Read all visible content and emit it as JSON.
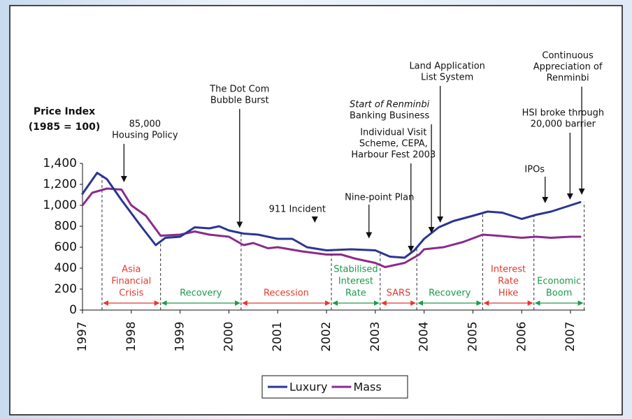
{
  "chart_data": {
    "type": "line",
    "y_label": [
      "Price Index",
      "(1985 = 100)"
    ],
    "xlim": [
      1997,
      2007.3
    ],
    "xticks": [
      1997,
      1998,
      1999,
      2000,
      2001,
      2002,
      2003,
      2004,
      2005,
      2006,
      2007
    ],
    "ylim": [
      0,
      1400
    ],
    "yticks": [
      0,
      200,
      400,
      600,
      800,
      {
        "value": 1000,
        "label": "1,000"
      },
      {
        "value": 1200,
        "label": "1,200"
      },
      {
        "value": 1400,
        "label": "1,400"
      }
    ],
    "legend": "bottom",
    "series": [
      {
        "name": "Luxury",
        "color": "#2a3593",
        "x": [
          1997,
          1997.3,
          1997.5,
          1997.8,
          1998.2,
          1998.5,
          1998.7,
          1999,
          1999.3,
          1999.6,
          1999.8,
          2000,
          2000.3,
          2000.6,
          2001,
          2001.3,
          2001.6,
          2002,
          2002.5,
          2003,
          2003.3,
          2003.6,
          2003.8,
          2004,
          2004.3,
          2004.6,
          2005,
          2005.3,
          2005.6,
          2006,
          2006.3,
          2006.6,
          2007,
          2007.2
        ],
        "values": [
          1110,
          1310,
          1250,
          1050,
          800,
          620,
          690,
          700,
          790,
          780,
          800,
          760,
          730,
          720,
          680,
          680,
          600,
          570,
          580,
          570,
          510,
          500,
          570,
          680,
          790,
          850,
          900,
          940,
          930,
          870,
          910,
          940,
          1000,
          1030
        ]
      },
      {
        "name": "Mass",
        "color": "#8b2a8c",
        "x": [
          1997,
          1997.2,
          1997.5,
          1997.8,
          1998,
          1998.3,
          1998.6,
          1999,
          1999.3,
          1999.6,
          2000,
          2000.3,
          2000.5,
          2000.8,
          2001,
          2001.5,
          2002,
          2002.3,
          2002.6,
          2003,
          2003.2,
          2003.6,
          2003.9,
          2004,
          2004.4,
          2004.8,
          2005.2,
          2005.5,
          2006,
          2006.3,
          2006.6,
          2007,
          2007.2
        ],
        "values": [
          1000,
          1120,
          1160,
          1150,
          1000,
          900,
          710,
          720,
          750,
          720,
          700,
          620,
          640,
          590,
          600,
          560,
          530,
          530,
          490,
          450,
          410,
          450,
          530,
          580,
          600,
          650,
          720,
          710,
          690,
          700,
          690,
          700,
          700
        ]
      }
    ],
    "periods": [
      {
        "lines": [
          "Asia",
          "Financial",
          "Crisis"
        ],
        "start": 1997.4,
        "end": 1998.6,
        "color": "#e23a2e"
      },
      {
        "lines": [
          "Recovery"
        ],
        "start": 1998.6,
        "end": 2000.25,
        "color": "#1d9a4a"
      },
      {
        "lines": [
          "Recession"
        ],
        "start": 2000.25,
        "end": 2002.1,
        "color": "#e23a2e"
      },
      {
        "lines": [
          "Stabilised",
          "Interest",
          "Rate"
        ],
        "start": 2002.1,
        "end": 2003.1,
        "color": "#1d9a4a"
      },
      {
        "lines": [
          "SARS"
        ],
        "start": 2003.1,
        "end": 2003.85,
        "color": "#e23a2e"
      },
      {
        "lines": [
          "Recovery"
        ],
        "start": 2003.85,
        "end": 2005.2,
        "color": "#1d9a4a"
      },
      {
        "lines": [
          "Interest",
          "Rate",
          "Hike"
        ],
        "start": 2005.2,
        "end": 2006.25,
        "color": "#e23a2e"
      },
      {
        "lines": [
          "Economic",
          "Boom"
        ],
        "start": 2006.25,
        "end": 2007.28,
        "color": "#1d9a4a"
      }
    ],
    "annotations": [
      {
        "lines": [
          "85,000",
          "Housing Policy"
        ],
        "x": 1997.85,
        "y": 1227
      },
      {
        "lines": [
          "The Dot Com",
          "Bubble Burst"
        ],
        "x": 2000.22,
        "y": 790
      },
      {
        "lines": [
          "911 Incident"
        ],
        "x": 2001.76,
        "y": 840
      },
      {
        "lines": [
          "Nine-point Plan"
        ],
        "x": 2002.87,
        "y": 690
      },
      {
        "lines": [
          "Individual Visit",
          "Scheme, CEPA,",
          "Harbour Fest 2003"
        ],
        "x": 2003.73,
        "y": 560
      },
      {
        "lines": [
          "Start of Renminbi",
          "Banking Business"
        ],
        "x": 2004.15,
        "y": 740
      },
      {
        "lines": [
          "Land Application",
          "List System"
        ],
        "x": 2004.33,
        "y": 840
      },
      {
        "lines": [
          "HSI broke through",
          "20,000 barrier"
        ],
        "x": 2006.99,
        "y": 1060
      },
      {
        "lines": [
          "IPOs"
        ],
        "x": 2006.48,
        "y": 1027
      },
      {
        "lines": [
          "Continuous",
          "Appreciation of",
          "Renminbi"
        ],
        "x": 2007.23,
        "y": 1107
      }
    ]
  }
}
